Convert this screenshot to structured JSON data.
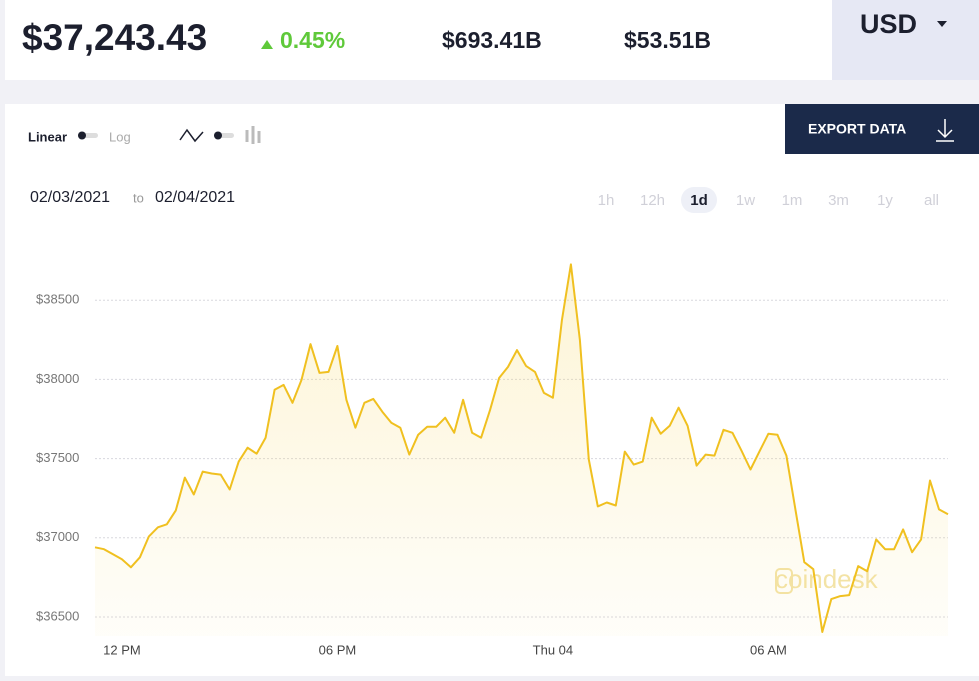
{
  "header": {
    "price": "$37,243.43",
    "change": "0.45%",
    "market_cap": "$693.41B",
    "volume": "$53.51B",
    "currency": "USD"
  },
  "controls": {
    "linear": "Linear",
    "log": "Log",
    "export": "EXPORT DATA",
    "date_from": "02/03/2021",
    "date_sep": "to",
    "date_to": "02/04/2021",
    "ranges": [
      "1h",
      "12h",
      "1d",
      "1w",
      "1m",
      "3m",
      "1y",
      "all"
    ],
    "active_range": "1d"
  },
  "chart_data": {
    "type": "line",
    "watermark": "coindesk",
    "grid": true,
    "x": [
      -0.75,
      -0.5,
      -0.25,
      0,
      0.25,
      0.5,
      0.75,
      1,
      1.25,
      1.5,
      1.75,
      2,
      2.25,
      2.5,
      2.75,
      3,
      3.25,
      3.5,
      3.75,
      4,
      4.25,
      4.5,
      4.75,
      5,
      5.25,
      5.5,
      5.75,
      6,
      6.25,
      6.5,
      6.75,
      7,
      7.25,
      7.5,
      7.75,
      8,
      8.25,
      8.5,
      8.75,
      9,
      9.25,
      9.5,
      9.75,
      10,
      10.25,
      10.5,
      10.75,
      11,
      11.25,
      11.5,
      11.75,
      12,
      12.25,
      12.5,
      12.75,
      13,
      13.25,
      13.5,
      13.75,
      14,
      14.25,
      14.5,
      14.75,
      15,
      15.25,
      15.5,
      15.75,
      16,
      16.25,
      16.5,
      16.75,
      17,
      17.25,
      17.5,
      17.75,
      18,
      18.25,
      18.5,
      18.75,
      19,
      19.25,
      19.5,
      19.75,
      20,
      20.25,
      20.5,
      20.75,
      21,
      21.25,
      21.5,
      21.75,
      22,
      22.25,
      22.5,
      22.75,
      23
    ],
    "series": [
      {
        "color": "#f0c020",
        "values": [
          36940,
          36928,
          36896,
          36865,
          36814,
          36877,
          37009,
          37066,
          37085,
          37173,
          37380,
          37273,
          37418,
          37406,
          37399,
          37305,
          37481,
          37569,
          37531,
          37632,
          37934,
          37965,
          37852,
          37997,
          38223,
          38041,
          38047,
          38211,
          37871,
          37695,
          37852,
          37877,
          37796,
          37726,
          37695,
          37525,
          37651,
          37701,
          37701,
          37758,
          37663,
          37871,
          37663,
          37632,
          37808,
          38009,
          38079,
          38185,
          38085,
          38047,
          37915,
          37884,
          38374,
          38726,
          38248,
          37494,
          37198,
          37223,
          37204,
          37544,
          37462,
          37481,
          37758,
          37657,
          37707,
          37821,
          37707,
          37456,
          37525,
          37519,
          37682,
          37663,
          37550,
          37431,
          37544,
          37657,
          37651,
          37519,
          37179,
          36846,
          36802,
          36405,
          36613,
          36632,
          36638,
          36821,
          36789,
          36990,
          36928,
          36928,
          37053,
          36909,
          36990,
          37362,
          37179,
          37148
        ]
      }
    ],
    "xlim": [
      -0.75,
      23
    ],
    "xticks": [
      {
        "value": 0,
        "label": "12 PM"
      },
      {
        "value": 6,
        "label": "06 PM"
      },
      {
        "value": 12,
        "label": "Thu 04"
      },
      {
        "value": 18,
        "label": "06 AM"
      }
    ],
    "ylim": [
      36380,
      38880
    ],
    "yticks": [
      {
        "value": 36500,
        "label": "$36500"
      },
      {
        "value": 37000,
        "label": "$37000"
      },
      {
        "value": 37500,
        "label": "$37500"
      },
      {
        "value": 38000,
        "label": "$38000"
      },
      {
        "value": 38500,
        "label": "$38500"
      }
    ]
  }
}
